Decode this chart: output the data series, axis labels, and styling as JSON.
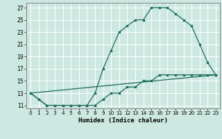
{
  "xlabel": "Humidex (Indice chaleur)",
  "bg_color": "#cce8e0",
  "grid_color": "#ffffff",
  "line_color": "#1a6b5a",
  "xlim": [
    -0.5,
    23.5
  ],
  "ylim": [
    10.5,
    27.8
  ],
  "yticks": [
    11,
    13,
    15,
    17,
    19,
    21,
    23,
    25,
    27
  ],
  "xticks": [
    0,
    1,
    2,
    3,
    4,
    5,
    6,
    7,
    8,
    9,
    10,
    11,
    12,
    13,
    14,
    15,
    16,
    17,
    18,
    19,
    20,
    21,
    22,
    23
  ],
  "curve1_x": [
    0,
    1,
    2,
    3,
    4,
    5,
    6,
    7,
    8,
    9,
    10,
    11,
    12,
    13,
    14,
    15,
    16,
    17,
    18,
    19,
    20,
    21,
    22,
    23
  ],
  "curve1_y": [
    13,
    12,
    11,
    11,
    11,
    11,
    11,
    11,
    13,
    17,
    20,
    23,
    24,
    25,
    25,
    27,
    27,
    27,
    26,
    25,
    24,
    21,
    18,
    16
  ],
  "curve2_x": [
    0,
    1,
    2,
    3,
    4,
    5,
    6,
    7,
    8,
    9,
    10,
    11,
    12,
    13,
    14,
    15,
    16,
    17,
    18,
    19,
    20,
    21,
    22,
    23
  ],
  "curve2_y": [
    13,
    12,
    11,
    11,
    11,
    11,
    11,
    11,
    11,
    12,
    13,
    13,
    14,
    14,
    15,
    15,
    16,
    16,
    16,
    16,
    16,
    16,
    16,
    16
  ],
  "line3_x": [
    0,
    23
  ],
  "line3_y": [
    13,
    16
  ]
}
